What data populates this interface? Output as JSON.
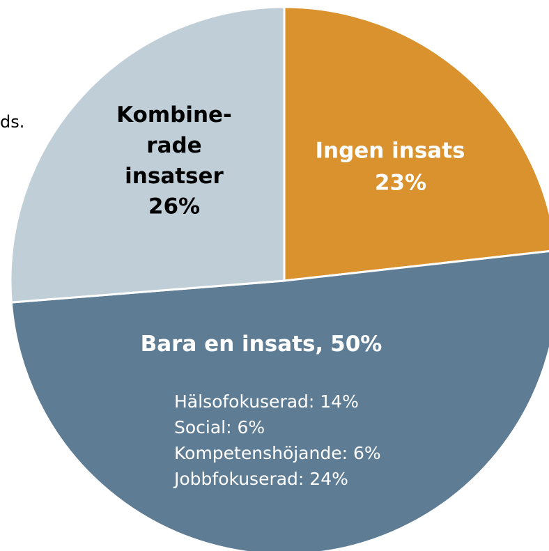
{
  "chart_data": {
    "type": "pie",
    "categories": [
      "Ingen insats",
      "Bara en insats,",
      "Kombine-\nrade\ninsatser"
    ],
    "values": [
      23,
      50,
      26
    ],
    "value_labels": [
      "23%",
      "50%",
      "26%"
    ],
    "colors": [
      "#d9922e",
      "#5e7d95",
      "#c0ced8"
    ],
    "label_colors": [
      "#ffffff",
      "#ffffff",
      "#000000"
    ],
    "breakdown": [
      "Hälsofokuserad: 14%",
      "Social: 6%",
      "Kompetenshöjande: 6%",
      "Jobbfokuserad: 24%"
    ],
    "annotation": "ds."
  }
}
